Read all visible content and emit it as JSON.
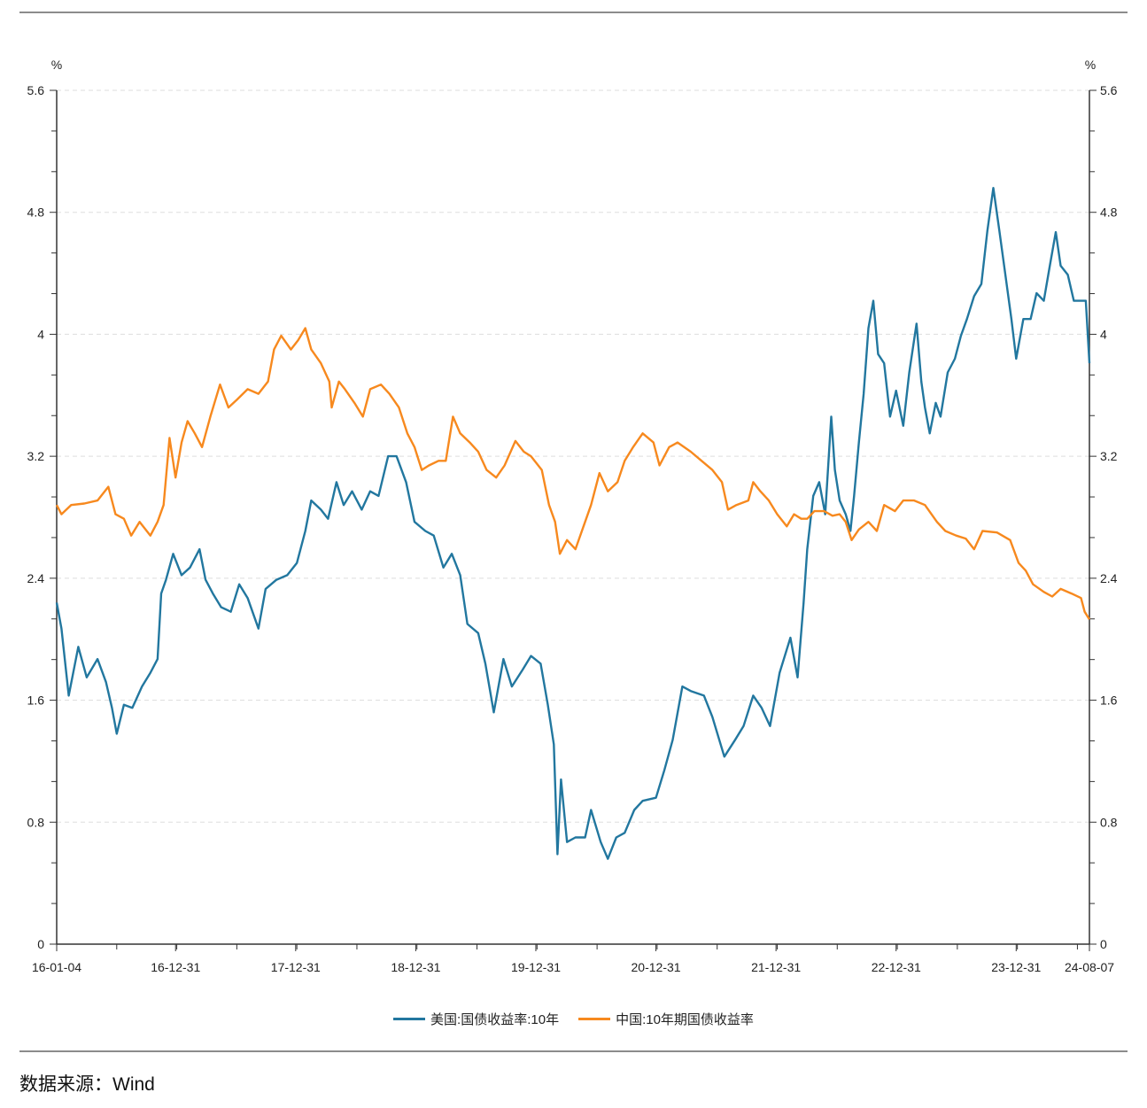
{
  "source_note": "数据来源：Wind",
  "chart_data": {
    "type": "line",
    "title": "",
    "xlabel": "",
    "ylabel_left": "%",
    "ylabel_right": "%",
    "ylim": [
      0,
      5.6
    ],
    "y_ticks": [
      "0",
      "0.8",
      "1.6",
      "2.4",
      "3.2",
      "4",
      "4.8",
      "5.6"
    ],
    "y_tick_values": [
      0,
      0.8,
      1.6,
      2.4,
      3.2,
      4,
      4.8,
      5.6
    ],
    "xlim": [
      2016.0,
      2024.6
    ],
    "x_ticks": [
      {
        "label": "16-01-04",
        "t": 2016.0
      },
      {
        "label": "16-12-31",
        "t": 2016.99
      },
      {
        "label": "17-12-31",
        "t": 2017.99
      },
      {
        "label": "18-12-31",
        "t": 2018.99
      },
      {
        "label": "19-12-31",
        "t": 2019.99
      },
      {
        "label": "20-12-31",
        "t": 2020.99
      },
      {
        "label": "21-12-31",
        "t": 2021.99
      },
      {
        "label": "22-12-31",
        "t": 2022.99
      },
      {
        "label": "23-12-31",
        "t": 2023.99
      },
      {
        "label": "24-08-07",
        "t": 2024.6
      }
    ],
    "grid": "horizontal-dashed",
    "legend_position": "bottom-center",
    "series": [
      {
        "name": "美国:国债收益率:10年",
        "color": "#22779f",
        "points": [
          [
            2016.0,
            2.24
          ],
          [
            2016.04,
            2.07
          ],
          [
            2016.1,
            1.63
          ],
          [
            2016.18,
            1.95
          ],
          [
            2016.25,
            1.75
          ],
          [
            2016.34,
            1.87
          ],
          [
            2016.41,
            1.72
          ],
          [
            2016.46,
            1.55
          ],
          [
            2016.5,
            1.38
          ],
          [
            2016.56,
            1.57
          ],
          [
            2016.63,
            1.55
          ],
          [
            2016.71,
            1.69
          ],
          [
            2016.78,
            1.78
          ],
          [
            2016.84,
            1.87
          ],
          [
            2016.87,
            2.3
          ],
          [
            2016.91,
            2.39
          ],
          [
            2016.97,
            2.56
          ],
          [
            2017.04,
            2.42
          ],
          [
            2017.11,
            2.47
          ],
          [
            2017.19,
            2.59
          ],
          [
            2017.24,
            2.39
          ],
          [
            2017.3,
            2.3
          ],
          [
            2017.37,
            2.21
          ],
          [
            2017.45,
            2.18
          ],
          [
            2017.52,
            2.36
          ],
          [
            2017.59,
            2.27
          ],
          [
            2017.68,
            2.07
          ],
          [
            2017.74,
            2.33
          ],
          [
            2017.83,
            2.39
          ],
          [
            2017.92,
            2.42
          ],
          [
            2018.0,
            2.5
          ],
          [
            2018.07,
            2.71
          ],
          [
            2018.12,
            2.91
          ],
          [
            2018.2,
            2.85
          ],
          [
            2018.26,
            2.79
          ],
          [
            2018.33,
            3.03
          ],
          [
            2018.39,
            2.88
          ],
          [
            2018.46,
            2.97
          ],
          [
            2018.54,
            2.85
          ],
          [
            2018.61,
            2.97
          ],
          [
            2018.68,
            2.94
          ],
          [
            2018.76,
            3.2
          ],
          [
            2018.83,
            3.2
          ],
          [
            2018.91,
            3.03
          ],
          [
            2018.98,
            2.77
          ],
          [
            2019.07,
            2.71
          ],
          [
            2019.14,
            2.68
          ],
          [
            2019.22,
            2.47
          ],
          [
            2019.29,
            2.56
          ],
          [
            2019.36,
            2.42
          ],
          [
            2019.42,
            2.1
          ],
          [
            2019.51,
            2.04
          ],
          [
            2019.57,
            1.84
          ],
          [
            2019.64,
            1.52
          ],
          [
            2019.72,
            1.87
          ],
          [
            2019.79,
            1.69
          ],
          [
            2019.88,
            1.8
          ],
          [
            2019.95,
            1.89
          ],
          [
            2020.03,
            1.84
          ],
          [
            2020.09,
            1.57
          ],
          [
            2020.14,
            1.31
          ],
          [
            2020.17,
            0.59
          ],
          [
            2020.2,
            1.08
          ],
          [
            2020.25,
            0.67
          ],
          [
            2020.32,
            0.7
          ],
          [
            2020.4,
            0.7
          ],
          [
            2020.45,
            0.88
          ],
          [
            2020.53,
            0.67
          ],
          [
            2020.59,
            0.56
          ],
          [
            2020.66,
            0.7
          ],
          [
            2020.73,
            0.73
          ],
          [
            2020.81,
            0.88
          ],
          [
            2020.88,
            0.94
          ],
          [
            2020.99,
            0.96
          ],
          [
            2021.06,
            1.14
          ],
          [
            2021.13,
            1.34
          ],
          [
            2021.21,
            1.69
          ],
          [
            2021.28,
            1.66
          ],
          [
            2021.39,
            1.63
          ],
          [
            2021.46,
            1.49
          ],
          [
            2021.56,
            1.23
          ],
          [
            2021.65,
            1.34
          ],
          [
            2021.72,
            1.43
          ],
          [
            2021.8,
            1.63
          ],
          [
            2021.87,
            1.55
          ],
          [
            2021.94,
            1.43
          ],
          [
            2022.02,
            1.78
          ],
          [
            2022.11,
            2.01
          ],
          [
            2022.17,
            1.75
          ],
          [
            2022.22,
            2.24
          ],
          [
            2022.25,
            2.59
          ],
          [
            2022.3,
            2.94
          ],
          [
            2022.35,
            3.03
          ],
          [
            2022.4,
            2.82
          ],
          [
            2022.45,
            3.46
          ],
          [
            2022.48,
            3.11
          ],
          [
            2022.52,
            2.91
          ],
          [
            2022.57,
            2.82
          ],
          [
            2022.61,
            2.71
          ],
          [
            2022.64,
            2.94
          ],
          [
            2022.68,
            3.29
          ],
          [
            2022.72,
            3.61
          ],
          [
            2022.76,
            4.04
          ],
          [
            2022.8,
            4.22
          ],
          [
            2022.84,
            3.87
          ],
          [
            2022.89,
            3.81
          ],
          [
            2022.94,
            3.46
          ],
          [
            2022.99,
            3.63
          ],
          [
            2023.05,
            3.4
          ],
          [
            2023.1,
            3.75
          ],
          [
            2023.16,
            4.07
          ],
          [
            2023.2,
            3.69
          ],
          [
            2023.23,
            3.52
          ],
          [
            2023.27,
            3.35
          ],
          [
            2023.32,
            3.55
          ],
          [
            2023.36,
            3.46
          ],
          [
            2023.42,
            3.75
          ],
          [
            2023.48,
            3.84
          ],
          [
            2023.53,
            3.99
          ],
          [
            2023.58,
            4.1
          ],
          [
            2023.64,
            4.25
          ],
          [
            2023.7,
            4.33
          ],
          [
            2023.75,
            4.68
          ],
          [
            2023.8,
            4.96
          ],
          [
            2023.85,
            4.68
          ],
          [
            2023.89,
            4.45
          ],
          [
            2023.95,
            4.1
          ],
          [
            2023.99,
            3.84
          ],
          [
            2024.05,
            4.1
          ],
          [
            2024.11,
            4.1
          ],
          [
            2024.16,
            4.27
          ],
          [
            2024.22,
            4.22
          ],
          [
            2024.27,
            4.45
          ],
          [
            2024.32,
            4.67
          ],
          [
            2024.36,
            4.45
          ],
          [
            2024.42,
            4.39
          ],
          [
            2024.47,
            4.22
          ],
          [
            2024.53,
            4.22
          ],
          [
            2024.57,
            4.22
          ],
          [
            2024.6,
            3.81
          ]
        ]
      },
      {
        "name": "中国:10年期国债收益率",
        "color": "#f7891e",
        "points": [
          [
            2016.0,
            2.88
          ],
          [
            2016.04,
            2.82
          ],
          [
            2016.12,
            2.88
          ],
          [
            2016.23,
            2.89
          ],
          [
            2016.34,
            2.91
          ],
          [
            2016.43,
            3.0
          ],
          [
            2016.49,
            2.82
          ],
          [
            2016.56,
            2.79
          ],
          [
            2016.62,
            2.68
          ],
          [
            2016.69,
            2.77
          ],
          [
            2016.78,
            2.68
          ],
          [
            2016.84,
            2.77
          ],
          [
            2016.89,
            2.88
          ],
          [
            2016.94,
            3.32
          ],
          [
            2016.99,
            3.06
          ],
          [
            2017.04,
            3.29
          ],
          [
            2017.09,
            3.43
          ],
          [
            2017.15,
            3.35
          ],
          [
            2017.21,
            3.26
          ],
          [
            2017.28,
            3.46
          ],
          [
            2017.36,
            3.67
          ],
          [
            2017.43,
            3.52
          ],
          [
            2017.5,
            3.57
          ],
          [
            2017.59,
            3.64
          ],
          [
            2017.68,
            3.61
          ],
          [
            2017.76,
            3.69
          ],
          [
            2017.81,
            3.9
          ],
          [
            2017.87,
            3.99
          ],
          [
            2017.95,
            3.9
          ],
          [
            2018.01,
            3.96
          ],
          [
            2018.07,
            4.04
          ],
          [
            2018.12,
            3.9
          ],
          [
            2018.2,
            3.81
          ],
          [
            2018.27,
            3.69
          ],
          [
            2018.29,
            3.52
          ],
          [
            2018.35,
            3.69
          ],
          [
            2018.4,
            3.64
          ],
          [
            2018.48,
            3.55
          ],
          [
            2018.55,
            3.46
          ],
          [
            2018.61,
            3.64
          ],
          [
            2018.7,
            3.67
          ],
          [
            2018.77,
            3.61
          ],
          [
            2018.85,
            3.52
          ],
          [
            2018.92,
            3.35
          ],
          [
            2018.98,
            3.26
          ],
          [
            2019.04,
            3.11
          ],
          [
            2019.1,
            3.14
          ],
          [
            2019.18,
            3.17
          ],
          [
            2019.24,
            3.17
          ],
          [
            2019.3,
            3.46
          ],
          [
            2019.36,
            3.35
          ],
          [
            2019.44,
            3.29
          ],
          [
            2019.51,
            3.23
          ],
          [
            2019.58,
            3.11
          ],
          [
            2019.66,
            3.06
          ],
          [
            2019.73,
            3.14
          ],
          [
            2019.82,
            3.3
          ],
          [
            2019.89,
            3.23
          ],
          [
            2019.95,
            3.2
          ],
          [
            2020.04,
            3.11
          ],
          [
            2020.1,
            2.88
          ],
          [
            2020.15,
            2.77
          ],
          [
            2020.19,
            2.56
          ],
          [
            2020.25,
            2.65
          ],
          [
            2020.32,
            2.59
          ],
          [
            2020.4,
            2.77
          ],
          [
            2020.45,
            2.88
          ],
          [
            2020.52,
            3.09
          ],
          [
            2020.59,
            2.97
          ],
          [
            2020.67,
            3.03
          ],
          [
            2020.73,
            3.17
          ],
          [
            2020.8,
            3.26
          ],
          [
            2020.88,
            3.35
          ],
          [
            2020.97,
            3.29
          ],
          [
            2021.02,
            3.14
          ],
          [
            2021.1,
            3.26
          ],
          [
            2021.17,
            3.29
          ],
          [
            2021.28,
            3.23
          ],
          [
            2021.37,
            3.17
          ],
          [
            2021.46,
            3.11
          ],
          [
            2021.54,
            3.03
          ],
          [
            2021.59,
            2.85
          ],
          [
            2021.66,
            2.88
          ],
          [
            2021.76,
            2.91
          ],
          [
            2021.8,
            3.03
          ],
          [
            2021.86,
            2.97
          ],
          [
            2021.93,
            2.91
          ],
          [
            2022.0,
            2.82
          ],
          [
            2022.08,
            2.74
          ],
          [
            2022.14,
            2.82
          ],
          [
            2022.2,
            2.79
          ],
          [
            2022.25,
            2.79
          ],
          [
            2022.31,
            2.84
          ],
          [
            2022.39,
            2.84
          ],
          [
            2022.46,
            2.81
          ],
          [
            2022.52,
            2.82
          ],
          [
            2022.57,
            2.77
          ],
          [
            2022.62,
            2.65
          ],
          [
            2022.68,
            2.72
          ],
          [
            2022.76,
            2.77
          ],
          [
            2022.83,
            2.71
          ],
          [
            2022.89,
            2.88
          ],
          [
            2022.98,
            2.84
          ],
          [
            2023.05,
            2.91
          ],
          [
            2023.14,
            2.91
          ],
          [
            2023.23,
            2.88
          ],
          [
            2023.33,
            2.77
          ],
          [
            2023.4,
            2.71
          ],
          [
            2023.49,
            2.68
          ],
          [
            2023.57,
            2.66
          ],
          [
            2023.64,
            2.59
          ],
          [
            2023.71,
            2.71
          ],
          [
            2023.83,
            2.7
          ],
          [
            2023.94,
            2.65
          ],
          [
            2024.01,
            2.5
          ],
          [
            2024.07,
            2.45
          ],
          [
            2024.13,
            2.36
          ],
          [
            2024.22,
            2.31
          ],
          [
            2024.29,
            2.28
          ],
          [
            2024.36,
            2.33
          ],
          [
            2024.45,
            2.3
          ],
          [
            2024.53,
            2.27
          ],
          [
            2024.56,
            2.18
          ],
          [
            2024.6,
            2.13
          ]
        ]
      }
    ]
  }
}
